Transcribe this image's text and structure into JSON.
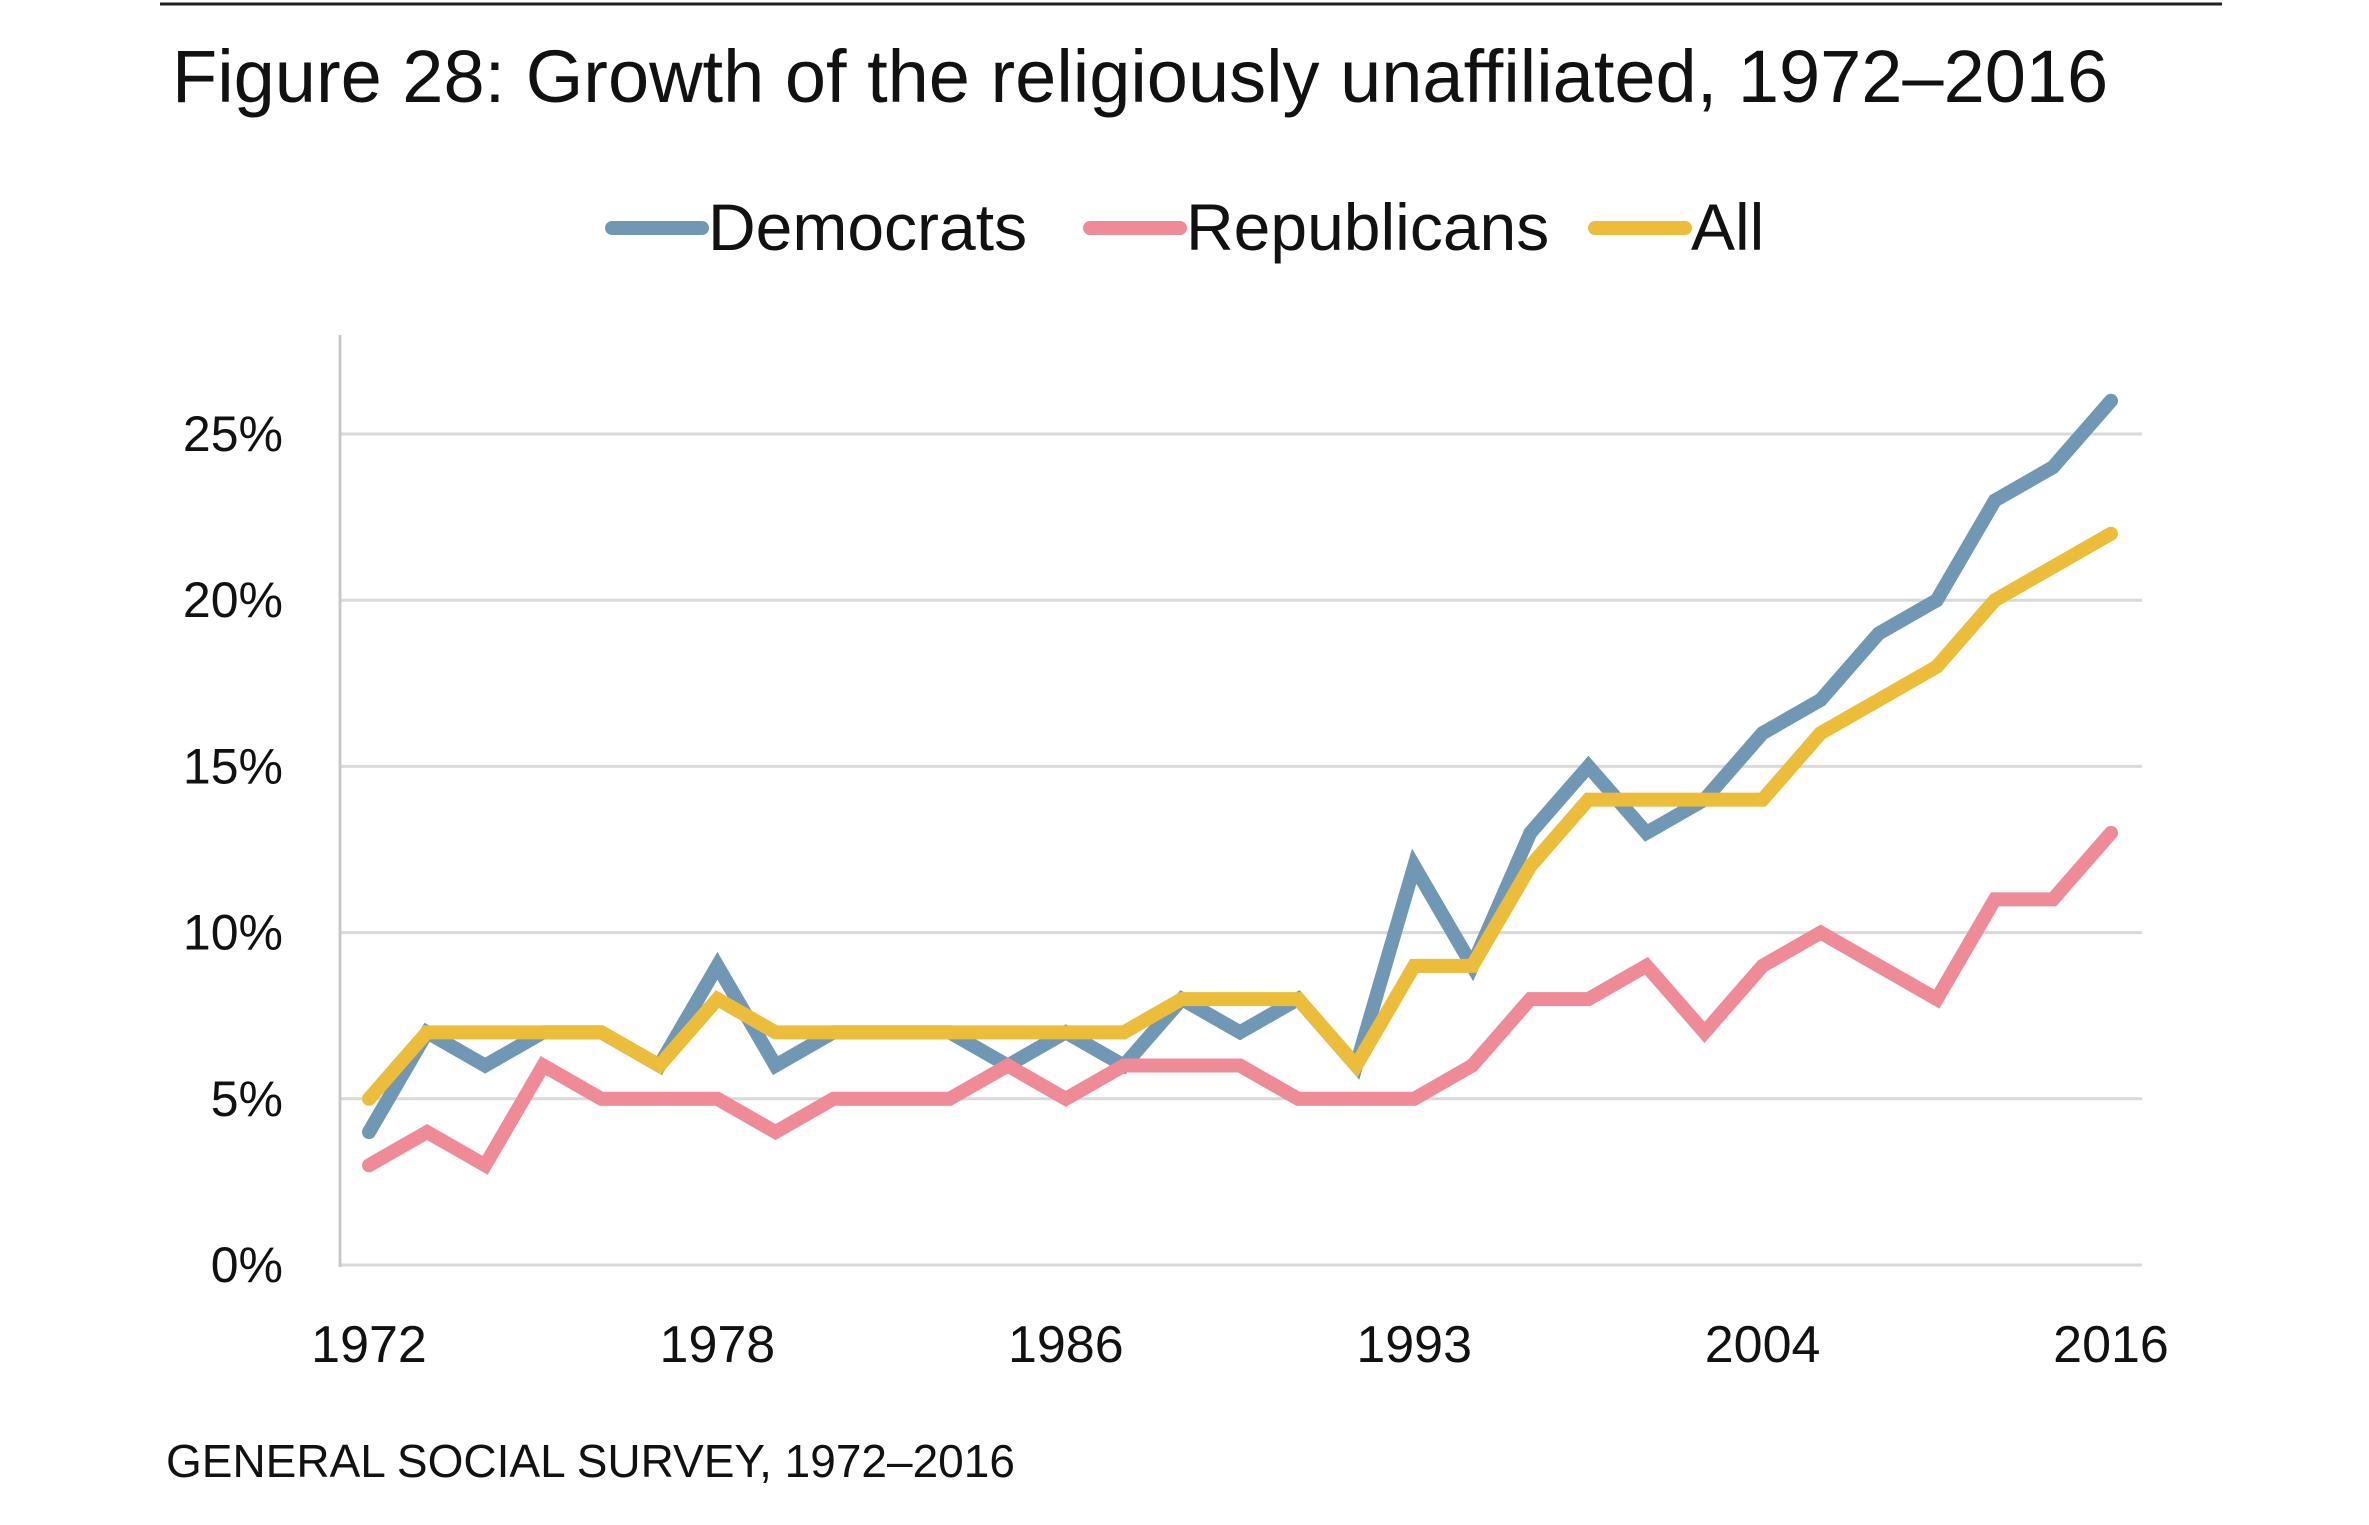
{
  "chart_data": {
    "type": "line",
    "title": "Figure 28: Growth of the religiously unaffiliated, 1972–2016",
    "source": "GENERAL SOCIAL SURVEY, 1972–2016",
    "x": [
      "1972",
      "1973",
      "1974",
      "1975",
      "1976",
      "1977",
      "1978",
      "1980",
      "1982",
      "1983",
      "1984",
      "1985",
      "1986",
      "1987",
      "1988",
      "1989",
      "1990",
      "1991",
      "1993",
      "1994",
      "1996",
      "1998",
      "2000",
      "2002",
      "2004",
      "2006",
      "2008",
      "2010",
      "2012",
      "2014",
      "2016"
    ],
    "x_tick_labels": [
      "1972",
      "1978",
      "1986",
      "1993",
      "2004",
      "2016"
    ],
    "y_tick_labels": [
      "0%",
      "5%",
      "10%",
      "15%",
      "20%",
      "25%"
    ],
    "ylim": [
      0,
      25
    ],
    "grid": true,
    "legend_position": "top",
    "series": [
      {
        "name": "Democrats",
        "color": "#7097b3",
        "values": [
          4,
          7,
          6,
          7,
          7,
          6,
          9,
          6,
          7,
          7,
          7,
          6,
          7,
          6,
          8,
          7,
          8,
          6,
          12,
          9,
          13,
          15,
          13,
          14,
          16,
          17,
          19,
          20,
          23,
          24,
          26
        ]
      },
      {
        "name": "Republicans",
        "color": "#ee8b97",
        "values": [
          3,
          4,
          3,
          6,
          5,
          5,
          5,
          4,
          5,
          5,
          5,
          6,
          5,
          6,
          6,
          6,
          5,
          5,
          5,
          6,
          8,
          8,
          9,
          7,
          9,
          10,
          9,
          8,
          11,
          11,
          13
        ]
      },
      {
        "name": "All",
        "color": "#ebbd3b",
        "values": [
          5,
          7,
          7,
          7,
          7,
          6,
          8,
          7,
          7,
          7,
          7,
          7,
          7,
          7,
          8,
          8,
          8,
          6,
          9,
          9,
          12,
          14,
          14,
          14,
          14,
          16,
          17,
          18,
          20,
          21,
          22
        ]
      }
    ]
  }
}
